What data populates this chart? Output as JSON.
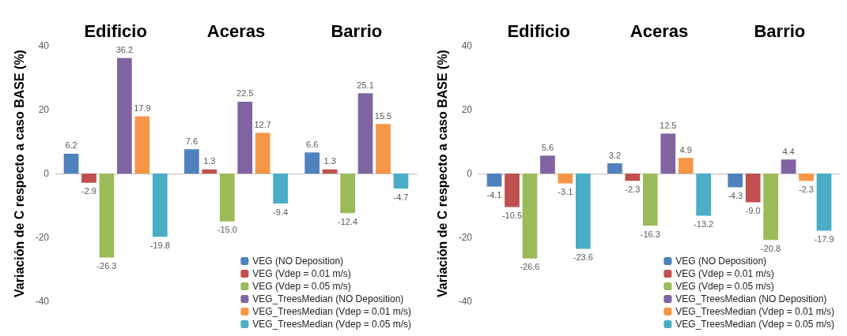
{
  "chart_data": [
    {
      "type": "bar",
      "categories": [
        "Edificio",
        "Aceras",
        "Barrio"
      ],
      "ylabel": "Variación de C respecto a caso BASE (%)",
      "ylim": [
        -40,
        40
      ],
      "yticks": [
        -40,
        -20,
        0,
        20,
        40
      ],
      "legend": "bottom right",
      "series": [
        {
          "name": "VEG (NO Deposition)",
          "color": "#4f81bd",
          "values": [
            6.2,
            7.6,
            6.6
          ],
          "value_labels": [
            "6.2",
            "7.6",
            "6.6"
          ]
        },
        {
          "name": "VEG (Vdep = 0.01 m/s)",
          "color": "#c0504d",
          "values": [
            -2.9,
            1.3,
            1.3
          ],
          "value_labels": [
            "-2.9",
            "1.3",
            "1.3"
          ]
        },
        {
          "name": "VEG (Vdep = 0.05 m/s)",
          "color": "#9bbb59",
          "values": [
            -26.3,
            -15.0,
            -12.4
          ],
          "value_labels": [
            "-26.3",
            "-15.0",
            "-12.4"
          ]
        },
        {
          "name": "VEG_TreesMedian (NO Deposition)",
          "color": "#8064a2",
          "values": [
            36.2,
            22.5,
            25.1
          ],
          "value_labels": [
            "36.2",
            "22.5",
            "25.1"
          ]
        },
        {
          "name": "VEG_TreesMedian (Vdep = 0.01 m/s)",
          "color": "#f79646",
          "values": [
            17.9,
            12.7,
            15.5
          ],
          "value_labels": [
            "17.9",
            "12.7",
            "15.5"
          ]
        },
        {
          "name": "VEG_TreesMedian (Vdep = 0.05 m/s)",
          "color": "#4bacc6",
          "values": [
            -19.8,
            -9.4,
            -4.7
          ],
          "value_labels": [
            "-19.8",
            "-9.4",
            "-4.7"
          ]
        }
      ]
    },
    {
      "type": "bar",
      "categories": [
        "Edificio",
        "Aceras",
        "Barrio"
      ],
      "ylabel": "Variación de C respecto a caso BASE (%)",
      "ylim": [
        -40,
        40
      ],
      "yticks": [
        -40,
        -20,
        0,
        20,
        40
      ],
      "legend": "bottom right",
      "series": [
        {
          "name": "VEG (NO Deposition)",
          "color": "#4f81bd",
          "values": [
            -4.1,
            3.2,
            -4.3
          ],
          "value_labels": [
            "-4.1",
            "3.2",
            "-4.3"
          ]
        },
        {
          "name": "VEG (Vdep = 0.01 m/s)",
          "color": "#c0504d",
          "values": [
            -10.5,
            -2.3,
            -9.0
          ],
          "value_labels": [
            "-10.5",
            "-2.3",
            "-9.0"
          ]
        },
        {
          "name": "VEG (Vdep = 0.05 m/s)",
          "color": "#9bbb59",
          "values": [
            -26.6,
            -16.3,
            -20.8
          ],
          "value_labels": [
            "-26.6",
            "-16.3",
            "-20.8"
          ]
        },
        {
          "name": "VEG_TreesMedian (NO Deposition)",
          "color": "#8064a2",
          "values": [
            5.6,
            12.5,
            4.4
          ],
          "value_labels": [
            "5.6",
            "12.5",
            "4.4"
          ]
        },
        {
          "name": "VEG_TreesMedian (Vdep = 0.01 m/s)",
          "color": "#f79646",
          "values": [
            -3.1,
            4.9,
            -2.3
          ],
          "value_labels": [
            "-3.1",
            "4.9",
            "-2.3"
          ]
        },
        {
          "name": "VEG_TreesMedian (Vdep = 0.05 m/s)",
          "color": "#4bacc6",
          "values": [
            -23.6,
            -13.2,
            -17.9
          ],
          "value_labels": [
            "-23.6",
            "-13.2",
            "-17.9"
          ]
        }
      ]
    }
  ]
}
